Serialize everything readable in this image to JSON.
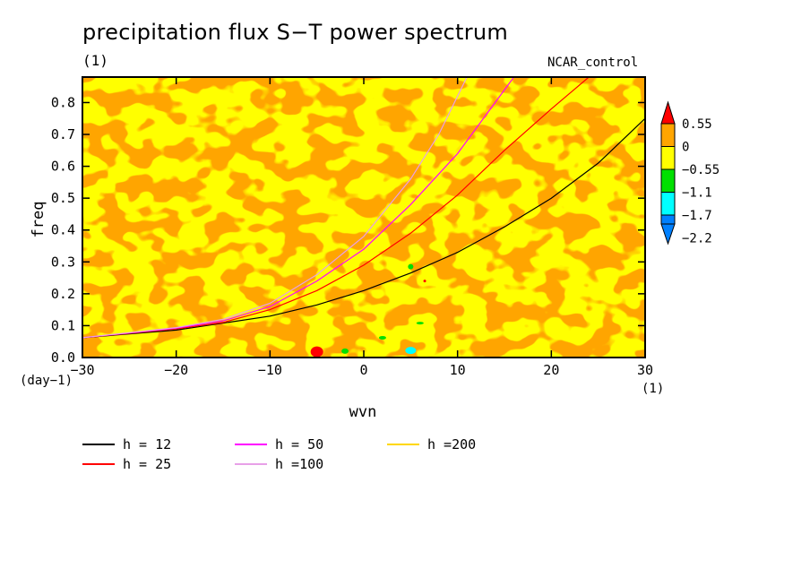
{
  "title": "precipitation flux S−T power spectrum",
  "units_label": "(1)",
  "run_label": "NCAR_control",
  "x_units": "(1)",
  "y_units": "(day−1)",
  "colorbar": {
    "labels": [
      "0.55",
      "0",
      "−0.55",
      "−1.1",
      "−1.7",
      "−2.2"
    ],
    "colors": [
      "#ff0000",
      "#ffa500",
      "#ffff00",
      "#00e000",
      "#00ffff",
      "#0080ff"
    ]
  },
  "chart_data": {
    "type": "heatmap",
    "xlabel": "wvn",
    "ylabel": "freq",
    "xlim": [
      -30,
      30
    ],
    "ylim": [
      0,
      0.88
    ],
    "xticks": [
      -30,
      -20,
      -10,
      0,
      10,
      20,
      30
    ],
    "xtick_labels": [
      "−30",
      "−20",
      "−10",
      "0",
      "10",
      "20",
      "30"
    ],
    "yticks": [
      0,
      0.1,
      0.2,
      0.3,
      0.4,
      0.5,
      0.6,
      0.7,
      0.8
    ],
    "ytick_labels": [
      "0.0",
      "0.1",
      "0.2",
      "0.3",
      "0.4",
      "0.5",
      "0.6",
      "0.7",
      "0.8"
    ],
    "contour_levels": [
      -2.2,
      -1.7,
      -1.1,
      -0.55,
      0,
      0.55
    ],
    "field_description_levels": [
      "mostly between -0.55 and 0.55 (yellow/orange)"
    ],
    "series": [
      {
        "name": "h = 12",
        "color": "#000000",
        "points": [
          [
            -30,
            0.062
          ],
          [
            -20,
            0.086
          ],
          [
            -10,
            0.13
          ],
          [
            -5,
            0.165
          ],
          [
            0,
            0.21
          ],
          [
            5,
            0.265
          ],
          [
            10,
            0.33
          ],
          [
            15,
            0.41
          ],
          [
            20,
            0.5
          ],
          [
            25,
            0.61
          ],
          [
            30,
            0.75
          ]
        ]
      },
      {
        "name": "h = 25",
        "color": "#ff0000",
        "points": [
          [
            -30,
            0.062
          ],
          [
            -20,
            0.09
          ],
          [
            -15,
            0.11
          ],
          [
            -10,
            0.15
          ],
          [
            -5,
            0.21
          ],
          [
            0,
            0.29
          ],
          [
            5,
            0.39
          ],
          [
            10,
            0.51
          ],
          [
            15,
            0.65
          ],
          [
            20,
            0.78
          ],
          [
            24,
            0.88
          ]
        ]
      },
      {
        "name": "h = 50",
        "color": "#ff00ff",
        "points": [
          [
            -30,
            0.062
          ],
          [
            -20,
            0.092
          ],
          [
            -15,
            0.115
          ],
          [
            -10,
            0.16
          ],
          [
            -5,
            0.24
          ],
          [
            0,
            0.34
          ],
          [
            5,
            0.48
          ],
          [
            10,
            0.64
          ],
          [
            13,
            0.76
          ],
          [
            16,
            0.88
          ]
        ]
      },
      {
        "name": "h =100",
        "color": "#e8a0e8",
        "points": [
          [
            -30,
            0.062
          ],
          [
            -20,
            0.094
          ],
          [
            -15,
            0.12
          ],
          [
            -10,
            0.17
          ],
          [
            -5,
            0.26
          ],
          [
            0,
            0.38
          ],
          [
            5,
            0.56
          ],
          [
            8,
            0.7
          ],
          [
            11,
            0.88
          ]
        ]
      },
      {
        "name": "h =200",
        "color": "#ffd700",
        "points": []
      }
    ]
  }
}
